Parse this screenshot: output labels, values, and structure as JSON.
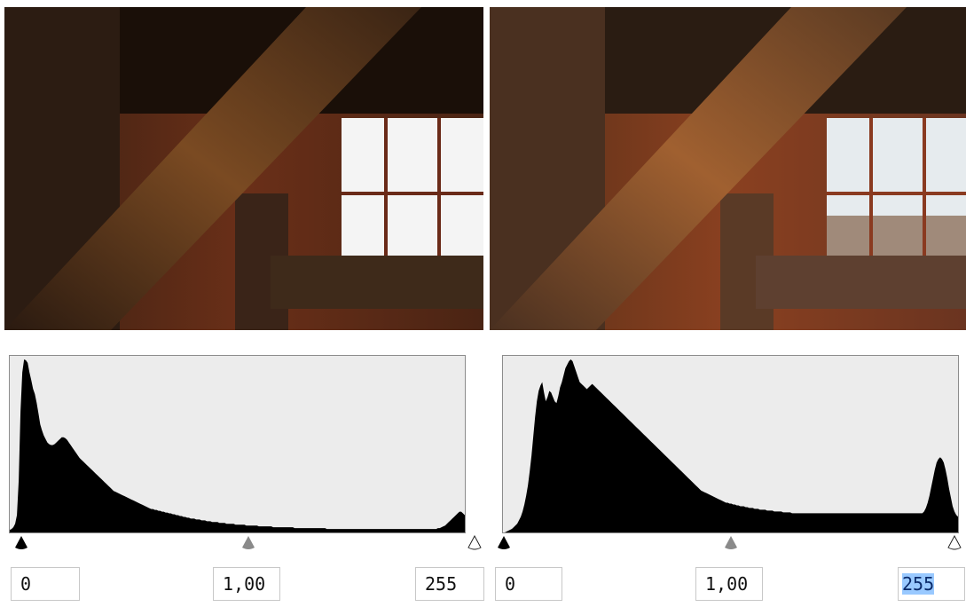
{
  "panels": [
    {
      "side": "left",
      "histogram": [
        3,
        4,
        6,
        10,
        20,
        60,
        140,
        185,
        200,
        199,
        196,
        185,
        176,
        166,
        160,
        150,
        138,
        125,
        118,
        112,
        108,
        104,
        102,
        101,
        101,
        102,
        104,
        106,
        108,
        110,
        110,
        109,
        107,
        104,
        101,
        98,
        95,
        92,
        89,
        86,
        84,
        82,
        80,
        78,
        76,
        74,
        72,
        70,
        68,
        66,
        64,
        62,
        60,
        58,
        56,
        54,
        52,
        50,
        48,
        47,
        46,
        45,
        44,
        43,
        42,
        41,
        40,
        39,
        38,
        37,
        36,
        35,
        34,
        33,
        32,
        31,
        30,
        29,
        28,
        27,
        27,
        26,
        26,
        25,
        25,
        24,
        24,
        23,
        23,
        22,
        22,
        21,
        21,
        20,
        20,
        19,
        19,
        18,
        18,
        17,
        17,
        16,
        16,
        16,
        15,
        15,
        15,
        14,
        14,
        14,
        13,
        13,
        13,
        12,
        12,
        12,
        12,
        11,
        11,
        11,
        11,
        10,
        10,
        10,
        10,
        10,
        9,
        9,
        9,
        9,
        9,
        9,
        8,
        8,
        8,
        8,
        8,
        8,
        8,
        7,
        7,
        7,
        7,
        7,
        7,
        7,
        7,
        6,
        6,
        6,
        6,
        6,
        6,
        6,
        6,
        6,
        6,
        6,
        6,
        5,
        5,
        5,
        5,
        5,
        5,
        5,
        5,
        5,
        5,
        5,
        5,
        5,
        5,
        5,
        5,
        5,
        5,
        4,
        4,
        4,
        4,
        4,
        4,
        4,
        4,
        4,
        4,
        4,
        4,
        4,
        4,
        4,
        4,
        4,
        4,
        4,
        4,
        4,
        4,
        4,
        4,
        4,
        4,
        4,
        4,
        4,
        4,
        4,
        4,
        4,
        4,
        4,
        4,
        4,
        4,
        4,
        4,
        4,
        4,
        4,
        4,
        4,
        4,
        4,
        4,
        4,
        4,
        4,
        4,
        4,
        4,
        4,
        4,
        4,
        4,
        4,
        4,
        4,
        4,
        5,
        5,
        6,
        7,
        8,
        10,
        12,
        14,
        16,
        18,
        20,
        22,
        24,
        24,
        22,
        20
      ],
      "inputs": {
        "black": "0",
        "gamma": "1,00",
        "white": "255"
      },
      "white_selected": false
    },
    {
      "side": "right",
      "histogram": [
        0,
        0,
        1,
        2,
        3,
        4,
        6,
        8,
        10,
        14,
        18,
        24,
        32,
        42,
        54,
        70,
        88,
        110,
        132,
        150,
        162,
        168,
        172,
        160,
        150,
        155,
        162,
        160,
        155,
        150,
        148,
        156,
        166,
        172,
        180,
        188,
        192,
        196,
        198,
        196,
        190,
        184,
        178,
        172,
        170,
        168,
        166,
        164,
        166,
        168,
        170,
        168,
        166,
        164,
        162,
        160,
        158,
        156,
        154,
        152,
        150,
        148,
        146,
        144,
        142,
        140,
        138,
        136,
        134,
        132,
        130,
        128,
        126,
        124,
        122,
        120,
        118,
        116,
        114,
        112,
        110,
        108,
        106,
        104,
        102,
        100,
        98,
        96,
        94,
        92,
        90,
        88,
        86,
        84,
        82,
        80,
        78,
        76,
        74,
        72,
        70,
        68,
        66,
        64,
        62,
        60,
        58,
        56,
        54,
        52,
        50,
        48,
        47,
        46,
        45,
        44,
        43,
        42,
        41,
        40,
        39,
        38,
        37,
        36,
        35,
        34,
        34,
        33,
        33,
        32,
        32,
        31,
        31,
        30,
        30,
        30,
        29,
        29,
        28,
        28,
        28,
        27,
        27,
        27,
        26,
        26,
        26,
        26,
        25,
        25,
        25,
        25,
        24,
        24,
        24,
        24,
        24,
        23,
        23,
        23,
        23,
        23,
        22,
        22,
        22,
        22,
        22,
        22,
        22,
        22,
        22,
        22,
        22,
        22,
        22,
        22,
        22,
        22,
        22,
        22,
        22,
        22,
        22,
        22,
        22,
        22,
        22,
        22,
        22,
        22,
        22,
        22,
        22,
        22,
        22,
        22,
        22,
        22,
        22,
        22,
        22,
        22,
        22,
        22,
        22,
        22,
        22,
        22,
        22,
        22,
        22,
        22,
        22,
        22,
        22,
        22,
        22,
        22,
        22,
        22,
        22,
        22,
        22,
        22,
        22,
        22,
        22,
        22,
        22,
        22,
        22,
        22,
        22,
        22,
        22,
        22,
        24,
        28,
        34,
        42,
        52,
        62,
        72,
        80,
        84,
        86,
        84,
        80,
        72,
        62,
        50,
        40,
        30,
        24,
        20,
        18
      ],
      "inputs": {
        "black": "0",
        "gamma": "1,00",
        "white": "255"
      },
      "white_selected": true
    }
  ],
  "colors": {
    "histogram_fill": "#000000",
    "histogram_bg": "#ececec",
    "selection": "#99c9ff"
  },
  "icons": {
    "black_point": "black-triangle-slider",
    "gamma_point": "gray-triangle-slider",
    "white_point": "white-triangle-slider"
  }
}
